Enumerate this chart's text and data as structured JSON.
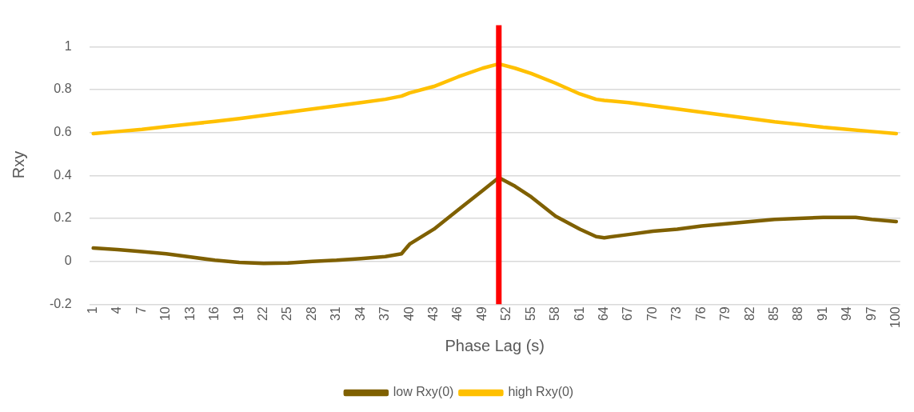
{
  "chart_data": {
    "type": "line",
    "xlabel": "Phase Lag (s)",
    "ylabel": "Rxy",
    "xlim": [
      0.5,
      100.5
    ],
    "xticks": [
      1,
      4,
      7,
      10,
      13,
      16,
      19,
      22,
      25,
      28,
      31,
      34,
      37,
      40,
      43,
      46,
      49,
      52,
      55,
      58,
      61,
      64,
      67,
      70,
      73,
      76,
      79,
      82,
      85,
      88,
      91,
      94,
      97,
      100
    ],
    "ylim": [
      -0.2,
      1.1
    ],
    "yticks": [
      -0.2,
      0,
      0.2,
      0.4,
      0.6,
      0.8,
      1
    ],
    "grid": "y",
    "legend": "bottom",
    "marker": "none",
    "line_style": "solid",
    "series": [
      {
        "name": "low Rxy(0)",
        "color": "#7f6000",
        "x": [
          1,
          4,
          7,
          10,
          13,
          16,
          19,
          22,
          25,
          28,
          31,
          34,
          37,
          39,
          40,
          43,
          46,
          48,
          49,
          51,
          53,
          55,
          58,
          61,
          63,
          64,
          67,
          70,
          73,
          76,
          79,
          82,
          85,
          88,
          91,
          94,
          95,
          97,
          100
        ],
        "values": [
          0.062,
          0.055,
          0.045,
          0.035,
          0.02,
          0.005,
          -0.005,
          -0.01,
          -0.008,
          0,
          0.005,
          0.013,
          0.022,
          0.035,
          0.08,
          0.15,
          0.24,
          0.3,
          0.33,
          0.39,
          0.35,
          0.3,
          0.21,
          0.15,
          0.115,
          0.11,
          0.125,
          0.14,
          0.15,
          0.165,
          0.175,
          0.185,
          0.195,
          0.2,
          0.205,
          0.205,
          0.205,
          0.195,
          0.185
        ]
      },
      {
        "name": "high Rxy(0)",
        "color": "#ffc000",
        "x": [
          1,
          4,
          7,
          10,
          13,
          16,
          19,
          22,
          25,
          28,
          31,
          34,
          37,
          39,
          40,
          43,
          46,
          49,
          51,
          53,
          55,
          58,
          61,
          63,
          64,
          67,
          70,
          73,
          76,
          79,
          82,
          85,
          88,
          91,
          94,
          97,
          100
        ],
        "values": [
          0.595,
          0.605,
          0.615,
          0.628,
          0.64,
          0.652,
          0.665,
          0.68,
          0.695,
          0.71,
          0.725,
          0.74,
          0.755,
          0.77,
          0.785,
          0.815,
          0.86,
          0.9,
          0.92,
          0.9,
          0.875,
          0.83,
          0.78,
          0.755,
          0.75,
          0.74,
          0.725,
          0.71,
          0.695,
          0.68,
          0.665,
          0.65,
          0.638,
          0.625,
          0.615,
          0.605,
          0.595
        ]
      }
    ],
    "ref_lines": [
      {
        "axis": "x",
        "value": 51,
        "color": "#ff0000"
      }
    ]
  }
}
